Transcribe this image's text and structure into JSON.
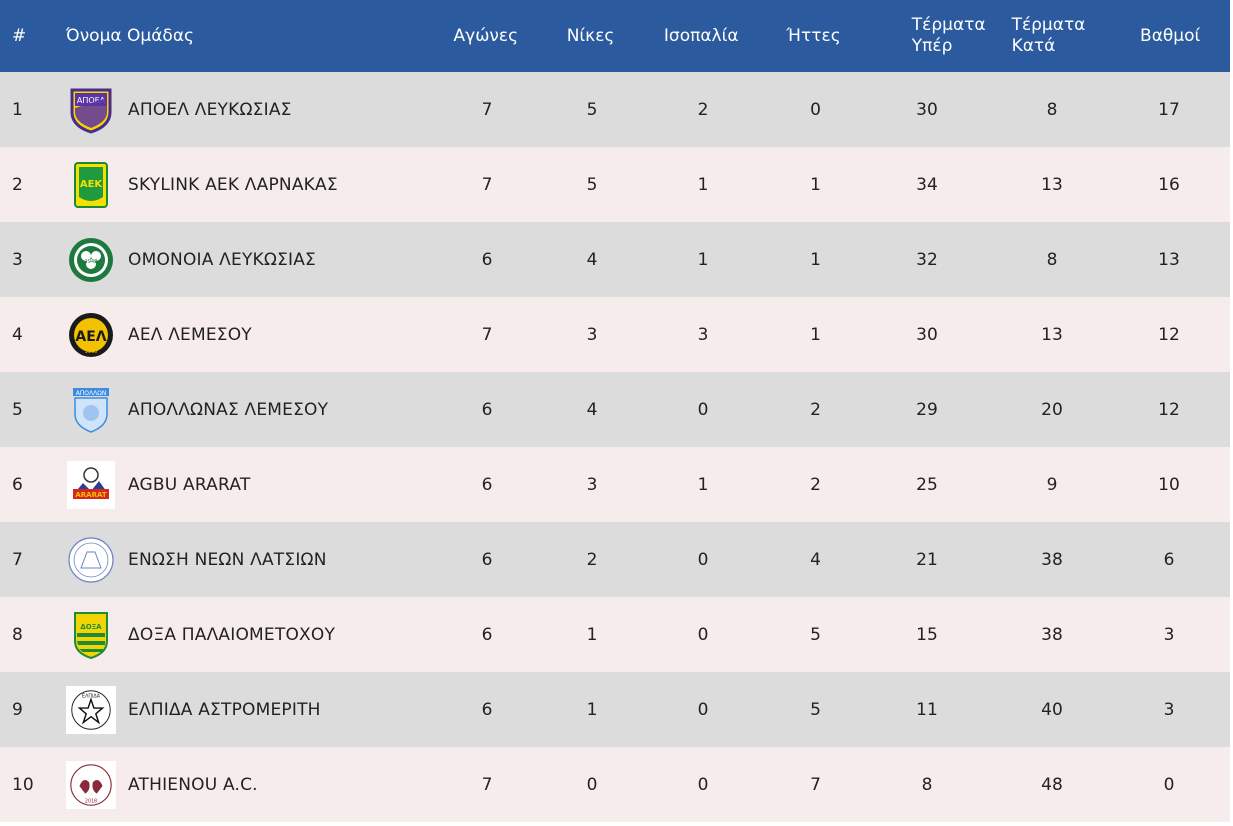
{
  "headers": {
    "pos": "#",
    "team": "Όνομα Ομάδας",
    "played": "Αγώνες",
    "wins": "Νίκες",
    "draws": "Ισοπαλία",
    "losses": "Ήττες",
    "gf_1": "Τέρματα",
    "gf_2": "Υπέρ",
    "ga_1": "Τέρματα",
    "ga_2": "Κατά",
    "pts": "Βαθμοί"
  },
  "colors": {
    "header_bg": "#2b5a9e",
    "row_grey": "#dcdcdc",
    "row_pink": "#f7ecec"
  },
  "rows": [
    {
      "pos": "1",
      "team": "ΑΠΟΕΛ ΛΕΥΚΩΣΙΑΣ",
      "logo": "apoel-logo-icon",
      "logo_text": "ΑΠΟΕΛ",
      "played": "7",
      "wins": "5",
      "draws": "2",
      "losses": "0",
      "gf": "30",
      "ga": "8",
      "pts": "17"
    },
    {
      "pos": "2",
      "team": "SKYLINK ΑΕΚ ΛΑΡΝΑΚΑΣ",
      "logo": "aek-logo-icon",
      "logo_text": "ΑΕΚ",
      "played": "7",
      "wins": "5",
      "draws": "1",
      "losses": "1",
      "gf": "34",
      "ga": "13",
      "pts": "16"
    },
    {
      "pos": "3",
      "team": "ΟΜΟΝΟΙΑ ΛΕΥΚΩΣΙΑΣ",
      "logo": "omonoia-logo-icon",
      "logo_text": "1948",
      "played": "6",
      "wins": "4",
      "draws": "1",
      "losses": "1",
      "gf": "32",
      "ga": "8",
      "pts": "13"
    },
    {
      "pos": "4",
      "team": "ΑΕΛ ΛΕΜΕΣΟΥ",
      "logo": "ael-logo-icon",
      "logo_text": "1930",
      "played": "7",
      "wins": "3",
      "draws": "3",
      "losses": "1",
      "gf": "30",
      "ga": "13",
      "pts": "12"
    },
    {
      "pos": "5",
      "team": "ΑΠΟΛΛΩΝΑΣ ΛΕΜΕΣΟΥ",
      "logo": "apollon-logo-icon",
      "logo_text": "ΑΠΟΛΛΩΝ",
      "played": "6",
      "wins": "4",
      "draws": "0",
      "losses": "2",
      "gf": "29",
      "ga": "20",
      "pts": "12"
    },
    {
      "pos": "6",
      "team": "AGBU ARARAT",
      "logo": "ararat-logo-icon",
      "logo_text": "ARARAT",
      "played": "6",
      "wins": "3",
      "draws": "1",
      "losses": "2",
      "gf": "25",
      "ga": "9",
      "pts": "10"
    },
    {
      "pos": "7",
      "team": "ΕΝΩΣΗ ΝΕΩΝ ΛΑΤΣΙΩΝ",
      "logo": "latsia-logo-icon",
      "logo_text": "",
      "played": "6",
      "wins": "2",
      "draws": "0",
      "losses": "4",
      "gf": "21",
      "ga": "38",
      "pts": "6"
    },
    {
      "pos": "8",
      "team": "ΔΟΞΑ ΠΑΛΑΙΟΜΕΤΟΧΟΥ",
      "logo": "doxa-logo-icon",
      "logo_text": "ΔΟΞΑ",
      "played": "6",
      "wins": "1",
      "draws": "0",
      "losses": "5",
      "gf": "15",
      "ga": "38",
      "pts": "3"
    },
    {
      "pos": "9",
      "team": "ΕΛΠΙΔΑ ΑΣΤΡΟΜΕΡΙΤΗ",
      "logo": "elpida-logo-icon",
      "logo_text": "ΕΛΠΙΔΑ",
      "played": "6",
      "wins": "1",
      "draws": "0",
      "losses": "5",
      "gf": "11",
      "ga": "40",
      "pts": "3"
    },
    {
      "pos": "10",
      "team": "ATHIENOU A.C.",
      "logo": "athienou-logo-icon",
      "logo_text": "2018",
      "played": "7",
      "wins": "0",
      "draws": "0",
      "losses": "7",
      "gf": "8",
      "ga": "48",
      "pts": "0"
    }
  ]
}
